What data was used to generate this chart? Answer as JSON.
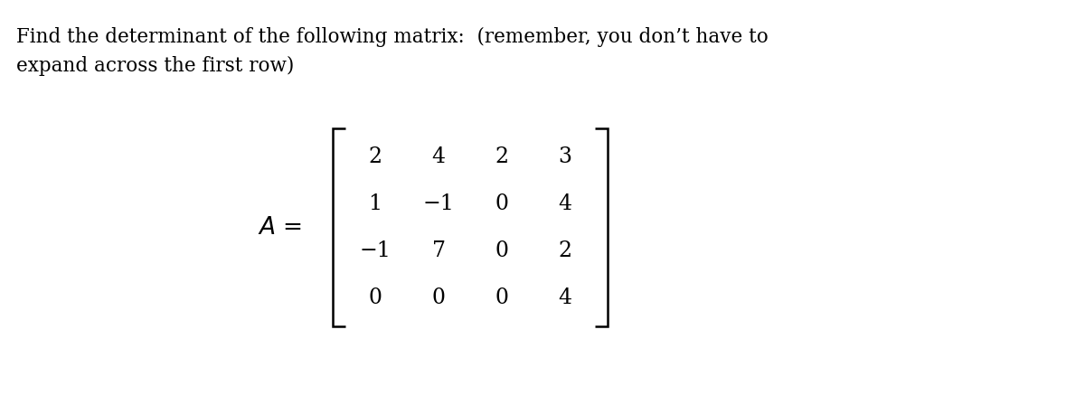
{
  "title_line1": "Find the determinant of the following matrix:  (remember, you don’t have to",
  "title_line2": "expand across the first row)",
  "matrix": [
    [
      "2",
      "4",
      "2",
      "3"
    ],
    [
      "1",
      "−1",
      "0",
      "4"
    ],
    [
      "−1",
      "7",
      "0",
      "2"
    ],
    [
      "0",
      "0",
      "0",
      "4"
    ]
  ],
  "label": "$A$ =",
  "bg_color": "#ffffff",
  "text_color": "#000000",
  "font_size_title": 15.5,
  "font_size_matrix": 17,
  "font_size_label": 19
}
